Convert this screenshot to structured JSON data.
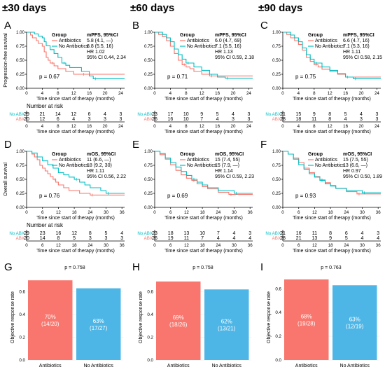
{
  "figure": {
    "column_titles": [
      "±30 days",
      "±60 days",
      "±90 days"
    ],
    "colors": {
      "antibiotics": "#F8766D",
      "no_antibiotics": "#00BFC4",
      "bar_antibiotics": "#F8766D",
      "bar_no_antibiotics": "#4DB6E6"
    }
  },
  "chart_data": [
    {
      "type": "line",
      "panel": "A",
      "kind": "km",
      "ylabel": "Progression-free survival",
      "xlabel": "Time since start of therapy (months)",
      "xlim": [
        0,
        25
      ],
      "ylim": [
        0,
        1.0
      ],
      "xticks": [
        0,
        4,
        8,
        12,
        16,
        20,
        24
      ],
      "yticks": [
        0.0,
        0.25,
        0.5,
        0.75,
        1.0
      ],
      "legend": {
        "group_title": "Group",
        "stat_title": "mPFS, 95%CI",
        "names": [
          "Antibiotics",
          "No Antibiotics"
        ],
        "stats": [
          "5.8 (4.1, —)",
          "8.8 (5.5, 16)"
        ],
        "extra": [
          "HR 1.02",
          "95% CI 0.44, 2.34"
        ]
      },
      "pvalue": "p = 0.67",
      "series": [
        {
          "name": "Antibiotics",
          "color": "#F8766D",
          "x": [
            0,
            1,
            1.5,
            2.5,
            3,
            4,
            4.5,
            5,
            5.5,
            6,
            7,
            8,
            10,
            12,
            14,
            25
          ],
          "y": [
            1,
            0.95,
            0.9,
            0.85,
            0.8,
            0.75,
            0.65,
            0.55,
            0.5,
            0.45,
            0.4,
            0.35,
            0.3,
            0.25,
            0.25,
            0.25
          ]
        },
        {
          "name": "No Antibiotics",
          "color": "#00BFC4",
          "x": [
            0,
            2,
            3,
            4,
            4.5,
            5,
            6,
            7,
            8,
            9,
            10,
            11,
            14,
            16,
            17,
            25
          ],
          "y": [
            1,
            0.97,
            0.93,
            0.9,
            0.83,
            0.76,
            0.69,
            0.62,
            0.55,
            0.45,
            0.41,
            0.37,
            0.3,
            0.22,
            0.17,
            0.17
          ]
        }
      ],
      "risk": {
        "title": "Number at risk",
        "xlabel": "Time since start of therapy (months)",
        "rows": [
          {
            "label": "No ABX",
            "values": [
              29,
              21,
              14,
              12,
              6,
              4,
              3
            ]
          },
          {
            "label": "ABX",
            "values": [
              20,
              12,
              6,
              4,
              3,
              3,
              3
            ]
          }
        ],
        "xticks": [
          0,
          4,
          8,
          12,
          16,
          20,
          24
        ]
      }
    },
    {
      "type": "line",
      "panel": "B",
      "kind": "km",
      "xlim": [
        0,
        25
      ],
      "ylim": [
        0,
        1.0
      ],
      "xticks": [
        0,
        4,
        8,
        12,
        16,
        20,
        24
      ],
      "yticks": [
        0.0,
        0.25,
        0.5,
        0.75,
        1.0
      ],
      "xlabel": "Time since start of therapy (months)",
      "legend": {
        "group_title": "Group",
        "stat_title": "mPFS, 95%CI",
        "names": [
          "Antibiotics",
          "No Antibiotics"
        ],
        "stats": [
          "6.0 (4.7, 69)",
          "7.1 (5.5, 16)"
        ],
        "extra": [
          "HR 1.13",
          "95% CI 0.59, 2.18"
        ]
      },
      "pvalue": "p = 0.71",
      "series": [
        {
          "name": "Antibiotics",
          "color": "#F8766D",
          "x": [
            0,
            1,
            2,
            3,
            4,
            5,
            6,
            7,
            8,
            9,
            10,
            12,
            14,
            25
          ],
          "y": [
            1,
            0.96,
            0.92,
            0.85,
            0.75,
            0.62,
            0.5,
            0.42,
            0.38,
            0.35,
            0.3,
            0.25,
            0.22,
            0.22
          ]
        },
        {
          "name": "No Antibiotics",
          "color": "#00BFC4",
          "x": [
            0,
            2,
            3,
            4,
            5,
            6,
            7,
            8,
            10,
            12,
            14,
            16,
            18,
            25
          ],
          "y": [
            1,
            0.96,
            0.9,
            0.83,
            0.7,
            0.6,
            0.52,
            0.45,
            0.38,
            0.32,
            0.25,
            0.2,
            0.18,
            0.18
          ]
        }
      ],
      "risk": {
        "rows": [
          {
            "label": "No ABX",
            "values": [
              23,
              17,
              10,
              9,
              5,
              4,
              3
            ]
          },
          {
            "label": "ABX",
            "values": [
              26,
              16,
              10,
              7,
              4,
              3,
              3
            ]
          }
        ],
        "xticks": [
          0,
          4,
          8,
          12,
          16,
          20,
          24
        ],
        "xlabel": "Time since start of therapy (months)"
      }
    },
    {
      "type": "line",
      "panel": "C",
      "kind": "km",
      "xlim": [
        0,
        25
      ],
      "ylim": [
        0,
        1.0
      ],
      "xticks": [
        0,
        4,
        8,
        12,
        16,
        20,
        24
      ],
      "yticks": [
        0.0,
        0.25,
        0.5,
        0.75,
        1.0
      ],
      "xlabel": "Time since start of therapy (months)",
      "legend": {
        "group_title": "Group",
        "stat_title": "mPFS, 95%CI",
        "names": [
          "Antibiotics",
          "No Antibiotics"
        ],
        "stats": [
          "6.6 (4.7, 16)",
          "7.1 (5.3, 16)"
        ],
        "extra": [
          "HR 1.11",
          "95% CI 0.58, 2.15"
        ]
      },
      "pvalue": "p = 0.75",
      "series": [
        {
          "name": "Antibiotics",
          "color": "#F8766D",
          "x": [
            0,
            1,
            2,
            3,
            4,
            5,
            6,
            7,
            8,
            9,
            10,
            12,
            14,
            16,
            25
          ],
          "y": [
            1,
            0.96,
            0.9,
            0.85,
            0.78,
            0.68,
            0.55,
            0.48,
            0.42,
            0.38,
            0.34,
            0.3,
            0.25,
            0.2,
            0.2
          ]
        },
        {
          "name": "No Antibiotics",
          "color": "#00BFC4",
          "x": [
            0,
            2,
            3,
            4,
            5,
            6,
            7,
            8,
            10,
            12,
            14,
            16,
            18,
            25
          ],
          "y": [
            1,
            0.95,
            0.9,
            0.83,
            0.72,
            0.6,
            0.52,
            0.45,
            0.38,
            0.32,
            0.26,
            0.2,
            0.17,
            0.17
          ]
        }
      ],
      "risk": {
        "rows": [
          {
            "label": "No ABX",
            "values": [
              21,
              15,
              9,
              8,
              5,
              4,
              3
            ]
          },
          {
            "label": "ABX",
            "values": [
              28,
              18,
              11,
              8,
              4,
              3,
              3
            ]
          }
        ],
        "xticks": [
          0,
          4,
          8,
          12,
          16,
          20,
          24
        ],
        "xlabel": "Time since start of therapy (months)"
      }
    },
    {
      "type": "line",
      "panel": "D",
      "kind": "km",
      "ylabel": "Overall survival",
      "xlabel": "Time since start of therapy (months)",
      "xlim": [
        0,
        37
      ],
      "ylim": [
        0,
        1.0
      ],
      "xticks": [
        0,
        6,
        12,
        18,
        24,
        30,
        36
      ],
      "yticks": [
        0.0,
        0.25,
        0.5,
        0.75,
        1.0
      ],
      "legend": {
        "group_title": "Group",
        "stat_title": "mOS, 95%CI",
        "names": [
          "Antibiotics",
          "No Antibiotics"
        ],
        "stats": [
          "11 (6.6, —)",
          "18 (9.2, 30)"
        ],
        "extra": [
          "HR 1.11",
          "95% CI 0.56, 2.22"
        ]
      },
      "pvalue": "p = 0.76",
      "series": [
        {
          "name": "Antibiotics",
          "color": "#F8766D",
          "x": [
            0,
            2,
            3,
            4,
            5,
            6,
            7,
            8,
            9,
            10,
            11,
            12,
            14,
            16,
            20,
            24,
            37
          ],
          "y": [
            1,
            0.95,
            0.9,
            0.85,
            0.75,
            0.7,
            0.65,
            0.6,
            0.55,
            0.5,
            0.45,
            0.4,
            0.35,
            0.3,
            0.25,
            0.22,
            0.22
          ]
        },
        {
          "name": "No Antibiotics",
          "color": "#00BFC4",
          "x": [
            0,
            2,
            4,
            6,
            8,
            10,
            12,
            14,
            16,
            18,
            20,
            22,
            24,
            28,
            30,
            37
          ],
          "y": [
            1,
            0.97,
            0.9,
            0.83,
            0.76,
            0.7,
            0.62,
            0.58,
            0.54,
            0.5,
            0.45,
            0.4,
            0.35,
            0.3,
            0.25,
            0.25
          ]
        }
      ],
      "risk": {
        "title": "Number at risk",
        "xlabel": "Time since start of therapy (months)",
        "rows": [
          {
            "label": "No ABX",
            "values": [
              29,
              23,
              16,
              12,
              8,
              5,
              4
            ]
          },
          {
            "label": "ABX",
            "values": [
              20,
              14,
              8,
              5,
              3,
              3,
              3
            ]
          }
        ],
        "xticks": [
          0,
          6,
          12,
          18,
          24,
          30,
          36
        ]
      }
    },
    {
      "type": "line",
      "panel": "E",
      "kind": "km",
      "xlim": [
        0,
        37
      ],
      "ylim": [
        0,
        1.0
      ],
      "xticks": [
        0,
        6,
        12,
        18,
        24,
        30,
        36
      ],
      "yticks": [
        0.0,
        0.25,
        0.5,
        0.75,
        1.0
      ],
      "xlabel": "Time since start of therapy (months)",
      "legend": {
        "group_title": "Group",
        "stat_title": "mOS, 95%CI",
        "names": [
          "Antibiotics",
          "No Antibiotics"
        ],
        "stats": [
          "15 (7.4, 55)",
          "15 (7.9, —)"
        ],
        "extra": [
          "HR 1.14",
          "95% CI 0.59, 2.23"
        ]
      },
      "pvalue": "p = 0.69",
      "series": [
        {
          "name": "Antibiotics",
          "color": "#F8766D",
          "x": [
            0,
            2,
            4,
            6,
            8,
            10,
            12,
            14,
            16,
            18,
            20,
            24,
            28,
            37
          ],
          "y": [
            1,
            0.94,
            0.86,
            0.76,
            0.66,
            0.58,
            0.52,
            0.48,
            0.42,
            0.37,
            0.33,
            0.27,
            0.23,
            0.23
          ]
        },
        {
          "name": "No Antibiotics",
          "color": "#00BFC4",
          "x": [
            0,
            2,
            4,
            6,
            8,
            10,
            12,
            14,
            16,
            18,
            20,
            24,
            30,
            37
          ],
          "y": [
            1,
            0.96,
            0.88,
            0.8,
            0.72,
            0.64,
            0.57,
            0.5,
            0.45,
            0.4,
            0.35,
            0.3,
            0.25,
            0.25
          ]
        }
      ],
      "risk": {
        "rows": [
          {
            "label": "No ABX",
            "values": [
              23,
              18,
              13,
              10,
              7,
              4,
              3
            ]
          },
          {
            "label": "ABX",
            "values": [
              26,
              19,
              11,
              7,
              4,
              4,
              4
            ]
          }
        ],
        "xticks": [
          0,
          6,
          12,
          18,
          24,
          30,
          36
        ],
        "xlabel": "Time since start of therapy (months)"
      }
    },
    {
      "type": "line",
      "panel": "F",
      "kind": "km",
      "xlim": [
        0,
        37
      ],
      "ylim": [
        0,
        1.0
      ],
      "xticks": [
        0,
        6,
        12,
        18,
        24,
        30,
        36
      ],
      "yticks": [
        0.0,
        0.25,
        0.5,
        0.75,
        1.0
      ],
      "xlabel": "Time since start of therapy (months)",
      "legend": {
        "group_title": "Group",
        "stat_title": "mOS, 95%CI",
        "names": [
          "Antibiotics",
          "No Antibiotics"
        ],
        "stats": [
          "15 (7.5, 55)",
          "13 (6.6, —)"
        ],
        "extra": [
          "HR 0.97",
          "95% CI 0.50, 1.89"
        ]
      },
      "pvalue": "p = 0.93",
      "series": [
        {
          "name": "Antibiotics",
          "color": "#F8766D",
          "x": [
            0,
            2,
            4,
            6,
            8,
            10,
            12,
            14,
            16,
            18,
            20,
            24,
            28,
            37
          ],
          "y": [
            1,
            0.95,
            0.88,
            0.8,
            0.7,
            0.62,
            0.55,
            0.49,
            0.44,
            0.39,
            0.34,
            0.28,
            0.24,
            0.24
          ]
        },
        {
          "name": "No Antibiotics",
          "color": "#00BFC4",
          "x": [
            0,
            2,
            4,
            6,
            8,
            10,
            12,
            14,
            16,
            18,
            20,
            24,
            30,
            37
          ],
          "y": [
            1,
            0.95,
            0.86,
            0.76,
            0.68,
            0.6,
            0.54,
            0.48,
            0.42,
            0.38,
            0.34,
            0.3,
            0.26,
            0.26
          ]
        }
      ],
      "risk": {
        "rows": [
          {
            "label": "No ABX",
            "values": [
              21,
              16,
              11,
              8,
              6,
              4,
              3
            ]
          },
          {
            "label": "ABX",
            "values": [
              28,
              21,
              13,
              9,
              5,
              4,
              4
            ]
          }
        ],
        "xticks": [
          0,
          6,
          12,
          18,
          24,
          30,
          36
        ],
        "xlabel": "Time since start of therapy (months)"
      }
    },
    {
      "type": "bar",
      "panel": "G",
      "ylabel": "Objective response rate",
      "ylim": [
        0,
        0.75
      ],
      "yticks": [
        0.0,
        0.2,
        0.4,
        0.6
      ],
      "pvalue": "p = 0.758",
      "categories": [
        "Antibiotics",
        "No Antibiotics"
      ],
      "values": [
        0.7,
        0.63
      ],
      "labels": [
        [
          "70%",
          "(14/20)"
        ],
        [
          "63%",
          "(17/27)"
        ]
      ]
    },
    {
      "type": "bar",
      "panel": "H",
      "ylabel": "Objective response rate",
      "ylim": [
        0,
        0.75
      ],
      "yticks": [
        0.0,
        0.2,
        0.4,
        0.6
      ],
      "pvalue": "p = 0.758",
      "categories": [
        "Antibiotics",
        "No Antibiotics"
      ],
      "values": [
        0.69,
        0.62
      ],
      "labels": [
        [
          "69%",
          "(18/26)"
        ],
        [
          "62%",
          "(13/21)"
        ]
      ]
    },
    {
      "type": "bar",
      "panel": "I",
      "ylabel": "Objective response rate",
      "ylim": [
        0,
        0.72
      ],
      "yticks": [
        0.0,
        0.2,
        0.4,
        0.6
      ],
      "pvalue": "p = 0.763",
      "categories": [
        "Antibiotics",
        "No Antibiotics"
      ],
      "values": [
        0.68,
        0.63
      ],
      "labels": [
        [
          "68%",
          "(19/28)"
        ],
        [
          "63%",
          "(12/19)"
        ]
      ]
    }
  ]
}
